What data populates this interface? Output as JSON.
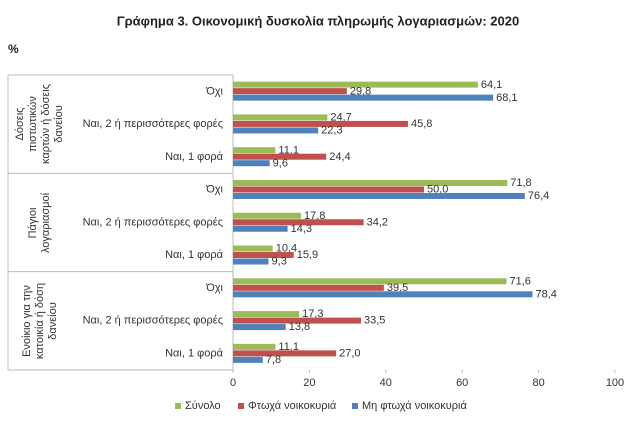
{
  "chart_data": {
    "type": "bar",
    "orientation": "horizontal",
    "title": "Γράφημα 3. Οικονομική δυσκολία πληρωμής λογαριασμών: 2020",
    "y_label": "%",
    "groups": [
      {
        "name": "Δόσεις πιστωτικών καρτών ή δόσεις δανείου",
        "categories": [
          "Όχι",
          "Ναι, 2 ή περισσότερες φορές",
          "Ναι, 1 φορά"
        ]
      },
      {
        "name": "Πάγιοι λογαριασμοί",
        "categories": [
          "Όχι",
          "Ναι, 2 ή περισσότερες φορές",
          "Ναι, 1 φορά"
        ]
      },
      {
        "name": "Ενοίκιο για την κατοικία ή δόση δανείου",
        "categories": [
          "Όχι",
          "Ναι, 2 ή περισσότερες φορές",
          "Ναι, 1 φορά"
        ]
      }
    ],
    "series": [
      {
        "name": "Σύνολο",
        "color": "#9bbb59",
        "values": [
          64.1,
          24.7,
          11.1,
          71.8,
          17.8,
          10.4,
          71.6,
          17.3,
          11.1
        ],
        "value_labels": [
          "64,1",
          "24,7",
          "11,1",
          "71,8",
          "17,8",
          "10,4",
          "71,6",
          "17,3",
          "11,1"
        ]
      },
      {
        "name": "Φτωχά νοικοκυριά",
        "color": "#c0504d",
        "values": [
          29.8,
          45.8,
          24.4,
          50.0,
          34.2,
          15.9,
          39.5,
          33.5,
          27.0
        ],
        "value_labels": [
          "29,8",
          "45,8",
          "24,4",
          "50,0",
          "34,2",
          "15,9",
          "39,5",
          "33,5",
          "27,0"
        ]
      },
      {
        "name": "Μη φτωχά νοικοκυριά",
        "color": "#4f81bd",
        "values": [
          68.1,
          22.3,
          9.6,
          76.4,
          14.3,
          9.3,
          78.4,
          13.8,
          7.8
        ],
        "value_labels": [
          "68,1",
          "22,3",
          "9,6",
          "76,4",
          "14,3",
          "9,3",
          "78,4",
          "13,8",
          "7,8"
        ]
      }
    ],
    "xlim": [
      0,
      100
    ],
    "xticks": [
      0,
      20,
      40,
      60,
      80,
      100
    ],
    "grid": false
  }
}
